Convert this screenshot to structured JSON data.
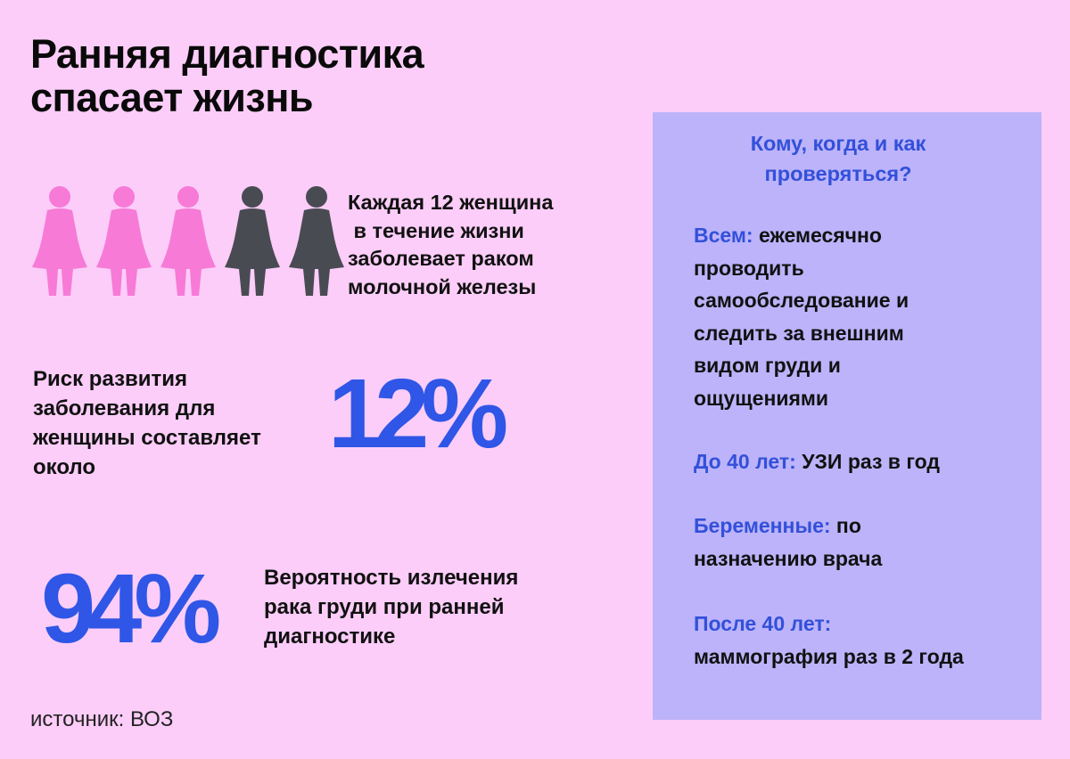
{
  "title": {
    "line1": "Ранняя диагностика",
    "line2": "спасает жизнь"
  },
  "colors": {
    "background": "#fbcdf8",
    "accent_blue": "#2f56e6",
    "panel_background": "#bcb3fa",
    "woman_pink": "#f77ad7",
    "woman_gray": "#494b52"
  },
  "women_icons": [
    {
      "icon": "woman-icon",
      "color": "pink"
    },
    {
      "icon": "woman-icon",
      "color": "pink"
    },
    {
      "icon": "woman-icon",
      "color": "pink"
    },
    {
      "icon": "woman-icon",
      "color": "gray"
    },
    {
      "icon": "woman-icon",
      "color": "gray"
    }
  ],
  "stat_incidence": {
    "line1": "Каждая 12 женщина",
    "line2": " в течение жизни",
    "line3": "заболевает раком",
    "line4": "молочной железы"
  },
  "stat_risk": {
    "line1": "Риск развития",
    "line2": "заболевания для",
    "line3": "женщины составляет",
    "line4": "около",
    "value": "12%"
  },
  "stat_cure": {
    "value": "94%",
    "line1": "Вероятность излечения",
    "line2": "рака груди при ранней",
    "line3": "диагностике"
  },
  "source": "источник:  ВОЗ",
  "panel": {
    "heading_line1": "Кому, когда и как",
    "heading_line2": "проверяться?",
    "all": {
      "label": "Всем:",
      "line1": " ежемесячно",
      "line2": "проводить",
      "line3": "самообследование и",
      "line4": "следить за внешним",
      "line5": "видом груди и",
      "line6": "ощущениями"
    },
    "under40": {
      "label": "До 40 лет:",
      "text": " УЗИ раз в год"
    },
    "pregnant": {
      "label": "Беременные:",
      "line1": " по",
      "line2": "назначению врача"
    },
    "over40": {
      "label": "После 40 лет:",
      "line2": "маммография раз в 2 года"
    }
  }
}
